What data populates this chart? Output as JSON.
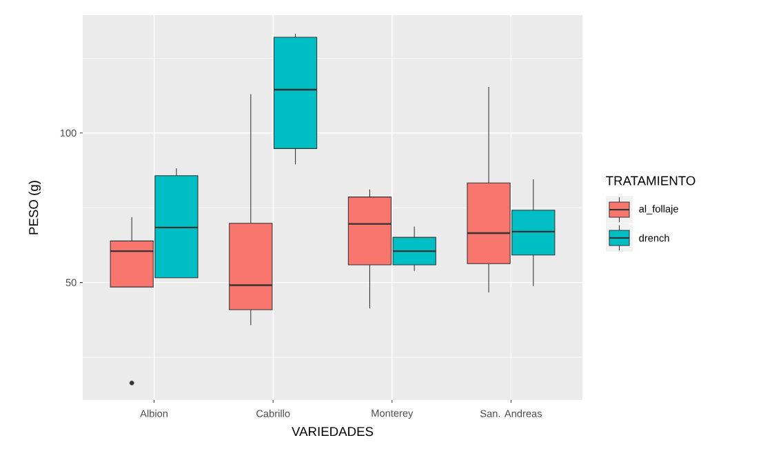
{
  "chart_data": {
    "type": "box",
    "xlabel": "VARIEDADES",
    "ylabel": "PESO (g)",
    "legend_title": "TRATAMIENTO",
    "legend": "right",
    "grid": true,
    "categories": [
      "Albion",
      "Cabrillo",
      "Monterey",
      "San. Andreas"
    ],
    "ylim": [
      10.7,
      139.4
    ],
    "yticks": [
      {
        "value": 25,
        "label": null
      },
      50,
      {
        "value": 75,
        "label": null
      },
      100,
      {
        "value": 125,
        "label": null
      }
    ],
    "series": [
      {
        "name": "al_follaje",
        "color": "#f8766d",
        "boxes": [
          {
            "low": 48.5,
            "q1": 48.5,
            "median": 60.5,
            "q3": 63.9,
            "high": 71.9,
            "outliers": [
              16.4
            ]
          },
          {
            "low": 35.7,
            "q1": 40.9,
            "median": 49.1,
            "q3": 69.8,
            "high": 113.0
          },
          {
            "low": 41.3,
            "q1": 55.9,
            "median": 69.6,
            "q3": 78.6,
            "high": 81.1
          },
          {
            "low": 46.7,
            "q1": 56.3,
            "median": 66.5,
            "q3": 83.3,
            "high": 115.4
          }
        ]
      },
      {
        "name": "drench",
        "color": "#00bfc4",
        "boxes": [
          {
            "low": 51.6,
            "q1": 51.6,
            "median": 68.4,
            "q3": 85.7,
            "high": 88.2
          },
          {
            "low": 89.5,
            "q1": 94.8,
            "median": 114.5,
            "q3": 132.0,
            "high": 133.1
          },
          {
            "low": 53.9,
            "q1": 55.9,
            "median": 60.5,
            "q3": 65.1,
            "high": 68.7
          },
          {
            "low": 48.8,
            "q1": 59.2,
            "median": 67.0,
            "q3": 74.2,
            "high": 84.5
          }
        ]
      }
    ]
  }
}
